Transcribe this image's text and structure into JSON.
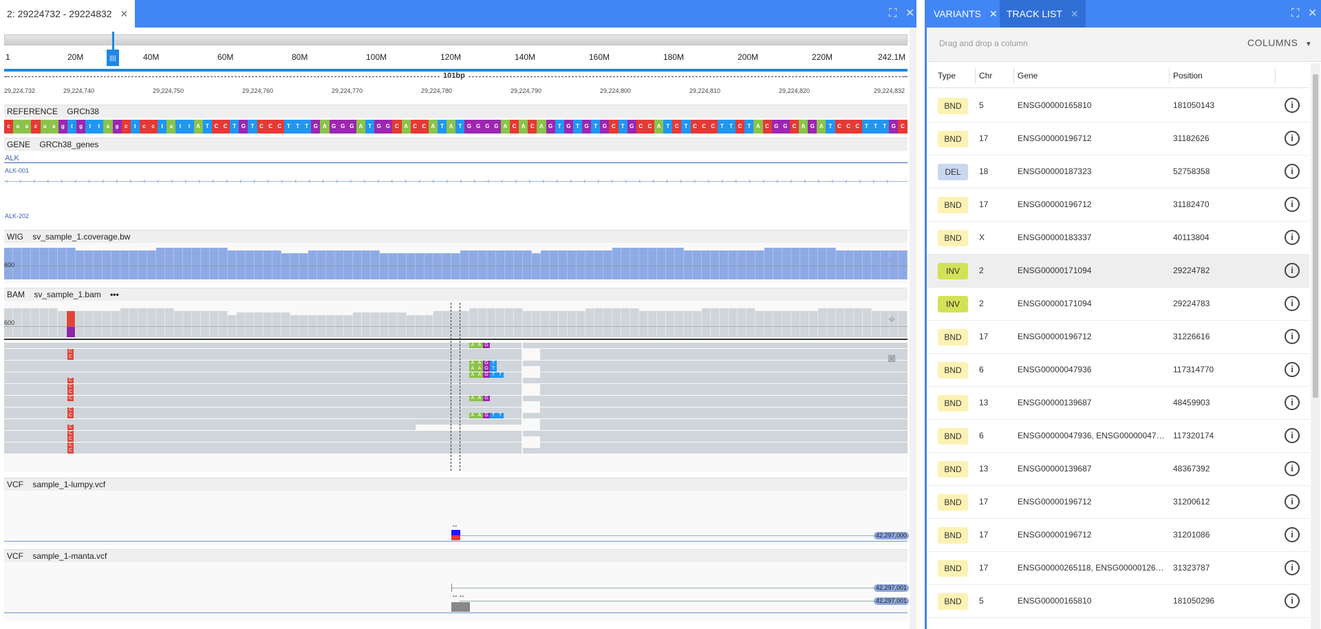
{
  "left_tab": {
    "label": "2: 29224732 - 29224832",
    "close": "✕"
  },
  "ideogram": {
    "ticks": [
      "1",
      "20M",
      "40M",
      "60M",
      "80M",
      "100M",
      "120M",
      "140M",
      "160M",
      "180M",
      "200M",
      "220M",
      "242.1M"
    ],
    "span_label": "101bp"
  },
  "coordinates": [
    "29,224,732",
    "29,224,740",
    "29,224,750",
    "29,224,760",
    "29,224,770",
    "29,224,780",
    "29,224,790",
    "29,224,800",
    "29,224,810",
    "29,224,820",
    "29,224,832"
  ],
  "tracks": {
    "reference": {
      "type": "REFERENCE",
      "name": "GRCh38",
      "sequence": "caacaagtgttagctcctattATCCTGTCCCTTTGAGGGATGGCACCATATGGGGACACAGTGTGTGCTGCCATCTCCCTTCTACGGCAGATCCCTTTGC"
    },
    "gene": {
      "type": "GENE",
      "name": "GRCh38_genes",
      "gene": "ALK",
      "transcripts": [
        "ALK-001",
        "ALK-202"
      ]
    },
    "wig": {
      "type": "WIG",
      "name": "sv_sample_1.coverage.bw",
      "axis": "600"
    },
    "bam": {
      "type": "BAM",
      "name": "sv_sample_1.bam",
      "menu": "•••",
      "axis": "600"
    },
    "vcf1": {
      "type": "VCF",
      "name": "sample_1-lumpy.vcf",
      "end_label": "42,297,000"
    },
    "vcf2": {
      "type": "VCF",
      "name": "sample_1-manta.vcf",
      "end_label_1": "42,297,001",
      "end_label_2": "42,297,001"
    }
  },
  "base_colors": {
    "A": "#8bc34a",
    "C": "#e53935",
    "G": "#9c27b0",
    "T": "#2196f3"
  },
  "right_tabs": [
    {
      "label": "VARIANTS",
      "close": "✕"
    },
    {
      "label": "TRACK LIST",
      "close": "✕"
    }
  ],
  "drop_hint": "Drag and drop a column",
  "columns_button": "COLUMNS",
  "grid": {
    "headers": [
      "Type",
      "Chr",
      "Gene",
      "Position"
    ],
    "rows": [
      {
        "type": "BND",
        "chr": "5",
        "gene": "ENSG00000165810",
        "pos": "181050143"
      },
      {
        "type": "BND",
        "chr": "17",
        "gene": "ENSG00000196712",
        "pos": "31182626"
      },
      {
        "type": "DEL",
        "chr": "18",
        "gene": "ENSG00000187323",
        "pos": "52758358"
      },
      {
        "type": "BND",
        "chr": "17",
        "gene": "ENSG00000196712",
        "pos": "31182470"
      },
      {
        "type": "BND",
        "chr": "X",
        "gene": "ENSG00000183337",
        "pos": "40113804"
      },
      {
        "type": "INV",
        "chr": "2",
        "gene": "ENSG00000171094",
        "pos": "29224782"
      },
      {
        "type": "INV",
        "chr": "2",
        "gene": "ENSG00000171094",
        "pos": "29224783"
      },
      {
        "type": "BND",
        "chr": "17",
        "gene": "ENSG00000196712",
        "pos": "31226616"
      },
      {
        "type": "BND",
        "chr": "6",
        "gene": "ENSG00000047936",
        "pos": "117314770"
      },
      {
        "type": "BND",
        "chr": "13",
        "gene": "ENSG00000139687",
        "pos": "48459903"
      },
      {
        "type": "BND",
        "chr": "6",
        "gene": "ENSG00000047936, ENSG00000047…",
        "pos": "117320174"
      },
      {
        "type": "BND",
        "chr": "13",
        "gene": "ENSG00000139687",
        "pos": "48367392"
      },
      {
        "type": "BND",
        "chr": "17",
        "gene": "ENSG00000196712",
        "pos": "31200612"
      },
      {
        "type": "BND",
        "chr": "17",
        "gene": "ENSG00000196712",
        "pos": "31201086"
      },
      {
        "type": "BND",
        "chr": "17",
        "gene": "ENSG00000265118, ENSG00000126…",
        "pos": "31323787"
      },
      {
        "type": "BND",
        "chr": "5",
        "gene": "ENSG00000165810",
        "pos": "181050296"
      }
    ],
    "badge_colors": {
      "BND": "#fdf2b3",
      "DEL": "#c9d7f0",
      "INV": "#d4e157"
    }
  }
}
